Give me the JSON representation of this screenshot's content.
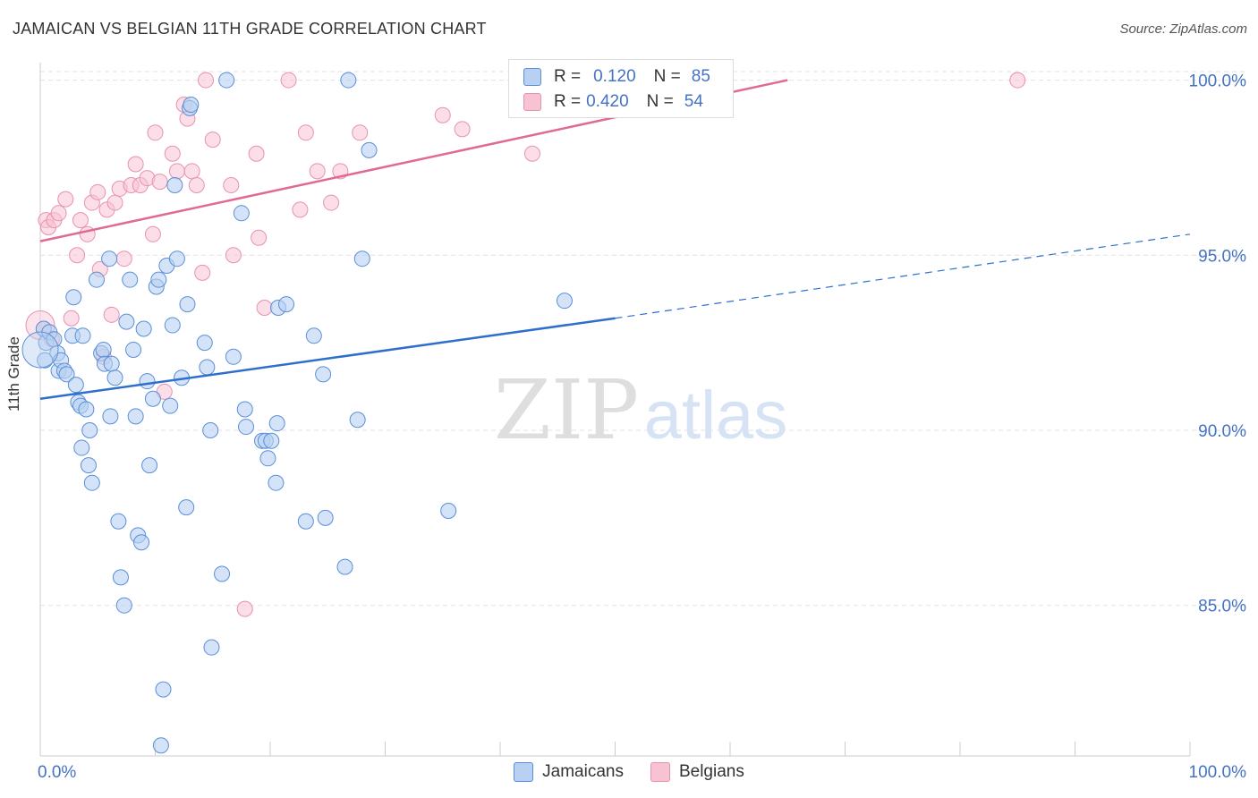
{
  "title": "JAMAICAN VS BELGIAN 11TH GRADE CORRELATION CHART",
  "source": "Source: ZipAtlas.com",
  "watermark": {
    "zip": "ZIP",
    "atlas": "atlas"
  },
  "legend_top": [
    {
      "r_label": "R =",
      "r_value": "0.120",
      "n_label": "N =",
      "n_value": "85"
    },
    {
      "r_label": "R =",
      "r_value": "0.420",
      "n_label": "N =",
      "n_value": "54"
    }
  ],
  "legend_bottom": [
    "Jamaicans",
    "Belgians"
  ],
  "colors": {
    "jamaicans_fill": "#b8d0f2",
    "jamaicans_stroke": "#5a8fd8",
    "jamaicans_line": "#2e6fcc",
    "belgians_fill": "#f7c3d3",
    "belgians_stroke": "#e892ad",
    "belgians_line": "#e06a92",
    "tick_label": "#4472c4",
    "grid": "#e2e2e2"
  },
  "chart_data": {
    "type": "scatter",
    "title": "JAMAICAN VS BELGIAN 11TH GRADE CORRELATION CHART",
    "xlabel": "",
    "ylabel": "11th Grade",
    "xlim": [
      0,
      100
    ],
    "ylim": [
      80.7,
      100.5
    ],
    "x_tick_labels": [
      "0.0%",
      "100.0%"
    ],
    "y_ticks": [
      85,
      90,
      95,
      100
    ],
    "y_tick_labels": [
      "85.0%",
      "90.0%",
      "95.0%",
      "100.0%"
    ],
    "grid": "horizontal dashed",
    "legend_position": "top-center and bottom",
    "series": [
      {
        "name": "Jamaicans",
        "r": 0.12,
        "n": 85,
        "trend": {
          "x0": 0,
          "y0": 90.9,
          "x1": 50,
          "y1": 93.2,
          "x_dash_end": 100,
          "y_dash_end": 95.6
        },
        "points": [
          [
            0.3,
            92.9
          ],
          [
            0.5,
            92.5
          ],
          [
            0.8,
            92.8
          ],
          [
            1.2,
            92.6
          ],
          [
            1.5,
            92.2
          ],
          [
            1.6,
            91.7
          ],
          [
            1.8,
            92.0
          ],
          [
            2.1,
            91.7
          ],
          [
            2.3,
            91.6
          ],
          [
            2.8,
            92.7
          ],
          [
            3.1,
            91.3
          ],
          [
            3.3,
            90.8
          ],
          [
            3.5,
            90.7
          ],
          [
            3.6,
            89.5
          ],
          [
            4.0,
            90.6
          ],
          [
            4.2,
            89.0
          ],
          [
            4.3,
            90.0
          ],
          [
            4.5,
            88.5
          ],
          [
            4.9,
            94.3
          ],
          [
            5.3,
            92.2
          ],
          [
            5.5,
            92.3
          ],
          [
            5.6,
            91.9
          ],
          [
            6.0,
            94.9
          ],
          [
            6.1,
            90.4
          ],
          [
            6.2,
            91.9
          ],
          [
            6.5,
            91.5
          ],
          [
            6.8,
            87.4
          ],
          [
            7.0,
            85.8
          ],
          [
            7.3,
            85.0
          ],
          [
            7.5,
            93.1
          ],
          [
            7.8,
            94.3
          ],
          [
            8.1,
            92.3
          ],
          [
            8.3,
            90.4
          ],
          [
            8.5,
            87.0
          ],
          [
            8.8,
            86.8
          ],
          [
            9.0,
            92.9
          ],
          [
            9.3,
            91.4
          ],
          [
            9.5,
            89.0
          ],
          [
            9.8,
            90.9
          ],
          [
            10.1,
            94.1
          ],
          [
            10.3,
            94.3
          ],
          [
            10.5,
            81.0
          ],
          [
            10.7,
            82.6
          ],
          [
            11.0,
            94.7
          ],
          [
            11.3,
            90.7
          ],
          [
            11.5,
            93.0
          ],
          [
            11.7,
            97.0
          ],
          [
            11.9,
            94.9
          ],
          [
            12.3,
            91.5
          ],
          [
            12.7,
            87.8
          ],
          [
            13.0,
            99.2
          ],
          [
            13.1,
            99.3
          ],
          [
            14.3,
            92.5
          ],
          [
            14.5,
            91.8
          ],
          [
            14.8,
            90.0
          ],
          [
            14.9,
            83.8
          ],
          [
            15.8,
            85.9
          ],
          [
            16.2,
            100.0
          ],
          [
            16.8,
            92.1
          ],
          [
            17.5,
            96.2
          ],
          [
            17.8,
            90.6
          ],
          [
            17.9,
            90.1
          ],
          [
            19.3,
            89.7
          ],
          [
            19.6,
            89.7
          ],
          [
            19.8,
            89.2
          ],
          [
            20.1,
            89.7
          ],
          [
            20.5,
            88.5
          ],
          [
            20.6,
            90.2
          ],
          [
            20.7,
            93.5
          ],
          [
            21.4,
            93.6
          ],
          [
            23.1,
            87.4
          ],
          [
            23.8,
            92.7
          ],
          [
            24.6,
            91.6
          ],
          [
            24.8,
            87.5
          ],
          [
            26.5,
            86.1
          ],
          [
            26.8,
            100.0
          ],
          [
            27.6,
            90.3
          ],
          [
            28.0,
            94.9
          ],
          [
            28.6,
            98.0
          ],
          [
            35.5,
            87.7
          ],
          [
            45.6,
            93.7
          ],
          [
            0.4,
            92.0
          ],
          [
            3.7,
            92.7
          ],
          [
            12.8,
            93.6
          ],
          [
            2.9,
            93.8
          ]
        ]
      },
      {
        "name": "Belgians",
        "r": 0.42,
        "n": 54,
        "trend": {
          "x0": 0,
          "y0": 95.4,
          "x1": 65,
          "y1": 100.0
        },
        "points": [
          [
            0.3,
            92.9
          ],
          [
            0.5,
            96.0
          ],
          [
            0.7,
            95.8
          ],
          [
            1.0,
            92.6
          ],
          [
            1.2,
            96.0
          ],
          [
            1.6,
            96.2
          ],
          [
            2.2,
            96.6
          ],
          [
            2.7,
            93.2
          ],
          [
            3.2,
            95.0
          ],
          [
            3.5,
            96.0
          ],
          [
            4.1,
            95.6
          ],
          [
            4.5,
            96.5
          ],
          [
            5.0,
            96.8
          ],
          [
            5.2,
            94.6
          ],
          [
            5.5,
            92.1
          ],
          [
            5.8,
            96.3
          ],
          [
            6.2,
            93.3
          ],
          [
            6.5,
            96.5
          ],
          [
            6.9,
            96.9
          ],
          [
            7.3,
            94.9
          ],
          [
            7.9,
            97.0
          ],
          [
            8.3,
            97.6
          ],
          [
            8.7,
            97.0
          ],
          [
            9.3,
            97.2
          ],
          [
            9.8,
            95.6
          ],
          [
            10.0,
            98.5
          ],
          [
            10.4,
            97.1
          ],
          [
            10.8,
            91.1
          ],
          [
            11.5,
            97.9
          ],
          [
            11.9,
            97.4
          ],
          [
            12.5,
            99.3
          ],
          [
            12.8,
            98.9
          ],
          [
            13.2,
            97.4
          ],
          [
            13.6,
            97.0
          ],
          [
            14.1,
            94.5
          ],
          [
            14.4,
            100.0
          ],
          [
            15.0,
            98.3
          ],
          [
            16.6,
            97.0
          ],
          [
            16.8,
            95.0
          ],
          [
            17.8,
            84.9
          ],
          [
            18.8,
            97.9
          ],
          [
            19.0,
            95.5
          ],
          [
            19.5,
            93.5
          ],
          [
            21.6,
            100.0
          ],
          [
            22.6,
            96.3
          ],
          [
            23.1,
            98.5
          ],
          [
            24.1,
            97.4
          ],
          [
            25.3,
            96.5
          ],
          [
            26.1,
            97.4
          ],
          [
            27.8,
            98.5
          ],
          [
            35.0,
            99.0
          ],
          [
            36.7,
            98.6
          ],
          [
            42.8,
            97.9
          ],
          [
            85.0,
            100.0
          ]
        ]
      }
    ]
  }
}
